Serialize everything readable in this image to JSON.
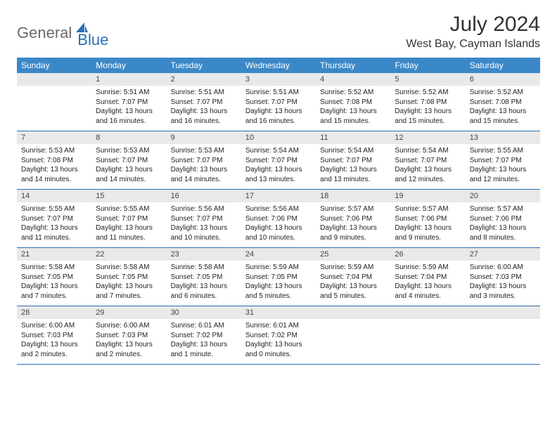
{
  "brand": {
    "part1": "General",
    "part2": "Blue"
  },
  "title": "July 2024",
  "location": "West Bay, Cayman Islands",
  "colors": {
    "header_bg": "#3b88c8",
    "header_text": "#ffffff",
    "border": "#2a6fb5",
    "daynum_bg": "#e9e9e9",
    "logo_gray": "#6b6b6b",
    "logo_blue": "#2a6fb5",
    "text": "#222222",
    "background": "#ffffff"
  },
  "dayNames": [
    "Sunday",
    "Monday",
    "Tuesday",
    "Wednesday",
    "Thursday",
    "Friday",
    "Saturday"
  ],
  "weeks": [
    [
      {
        "day": "",
        "sunrise": "",
        "sunset": "",
        "dl1": "",
        "dl2": ""
      },
      {
        "day": "1",
        "sunrise": "Sunrise: 5:51 AM",
        "sunset": "Sunset: 7:07 PM",
        "dl1": "Daylight: 13 hours",
        "dl2": "and 16 minutes."
      },
      {
        "day": "2",
        "sunrise": "Sunrise: 5:51 AM",
        "sunset": "Sunset: 7:07 PM",
        "dl1": "Daylight: 13 hours",
        "dl2": "and 16 minutes."
      },
      {
        "day": "3",
        "sunrise": "Sunrise: 5:51 AM",
        "sunset": "Sunset: 7:07 PM",
        "dl1": "Daylight: 13 hours",
        "dl2": "and 16 minutes."
      },
      {
        "day": "4",
        "sunrise": "Sunrise: 5:52 AM",
        "sunset": "Sunset: 7:08 PM",
        "dl1": "Daylight: 13 hours",
        "dl2": "and 15 minutes."
      },
      {
        "day": "5",
        "sunrise": "Sunrise: 5:52 AM",
        "sunset": "Sunset: 7:08 PM",
        "dl1": "Daylight: 13 hours",
        "dl2": "and 15 minutes."
      },
      {
        "day": "6",
        "sunrise": "Sunrise: 5:52 AM",
        "sunset": "Sunset: 7:08 PM",
        "dl1": "Daylight: 13 hours",
        "dl2": "and 15 minutes."
      }
    ],
    [
      {
        "day": "7",
        "sunrise": "Sunrise: 5:53 AM",
        "sunset": "Sunset: 7:08 PM",
        "dl1": "Daylight: 13 hours",
        "dl2": "and 14 minutes."
      },
      {
        "day": "8",
        "sunrise": "Sunrise: 5:53 AM",
        "sunset": "Sunset: 7:07 PM",
        "dl1": "Daylight: 13 hours",
        "dl2": "and 14 minutes."
      },
      {
        "day": "9",
        "sunrise": "Sunrise: 5:53 AM",
        "sunset": "Sunset: 7:07 PM",
        "dl1": "Daylight: 13 hours",
        "dl2": "and 14 minutes."
      },
      {
        "day": "10",
        "sunrise": "Sunrise: 5:54 AM",
        "sunset": "Sunset: 7:07 PM",
        "dl1": "Daylight: 13 hours",
        "dl2": "and 13 minutes."
      },
      {
        "day": "11",
        "sunrise": "Sunrise: 5:54 AM",
        "sunset": "Sunset: 7:07 PM",
        "dl1": "Daylight: 13 hours",
        "dl2": "and 13 minutes."
      },
      {
        "day": "12",
        "sunrise": "Sunrise: 5:54 AM",
        "sunset": "Sunset: 7:07 PM",
        "dl1": "Daylight: 13 hours",
        "dl2": "and 12 minutes."
      },
      {
        "day": "13",
        "sunrise": "Sunrise: 5:55 AM",
        "sunset": "Sunset: 7:07 PM",
        "dl1": "Daylight: 13 hours",
        "dl2": "and 12 minutes."
      }
    ],
    [
      {
        "day": "14",
        "sunrise": "Sunrise: 5:55 AM",
        "sunset": "Sunset: 7:07 PM",
        "dl1": "Daylight: 13 hours",
        "dl2": "and 11 minutes."
      },
      {
        "day": "15",
        "sunrise": "Sunrise: 5:55 AM",
        "sunset": "Sunset: 7:07 PM",
        "dl1": "Daylight: 13 hours",
        "dl2": "and 11 minutes."
      },
      {
        "day": "16",
        "sunrise": "Sunrise: 5:56 AM",
        "sunset": "Sunset: 7:07 PM",
        "dl1": "Daylight: 13 hours",
        "dl2": "and 10 minutes."
      },
      {
        "day": "17",
        "sunrise": "Sunrise: 5:56 AM",
        "sunset": "Sunset: 7:06 PM",
        "dl1": "Daylight: 13 hours",
        "dl2": "and 10 minutes."
      },
      {
        "day": "18",
        "sunrise": "Sunrise: 5:57 AM",
        "sunset": "Sunset: 7:06 PM",
        "dl1": "Daylight: 13 hours",
        "dl2": "and 9 minutes."
      },
      {
        "day": "19",
        "sunrise": "Sunrise: 5:57 AM",
        "sunset": "Sunset: 7:06 PM",
        "dl1": "Daylight: 13 hours",
        "dl2": "and 9 minutes."
      },
      {
        "day": "20",
        "sunrise": "Sunrise: 5:57 AM",
        "sunset": "Sunset: 7:06 PM",
        "dl1": "Daylight: 13 hours",
        "dl2": "and 8 minutes."
      }
    ],
    [
      {
        "day": "21",
        "sunrise": "Sunrise: 5:58 AM",
        "sunset": "Sunset: 7:05 PM",
        "dl1": "Daylight: 13 hours",
        "dl2": "and 7 minutes."
      },
      {
        "day": "22",
        "sunrise": "Sunrise: 5:58 AM",
        "sunset": "Sunset: 7:05 PM",
        "dl1": "Daylight: 13 hours",
        "dl2": "and 7 minutes."
      },
      {
        "day": "23",
        "sunrise": "Sunrise: 5:58 AM",
        "sunset": "Sunset: 7:05 PM",
        "dl1": "Daylight: 13 hours",
        "dl2": "and 6 minutes."
      },
      {
        "day": "24",
        "sunrise": "Sunrise: 5:59 AM",
        "sunset": "Sunset: 7:05 PM",
        "dl1": "Daylight: 13 hours",
        "dl2": "and 5 minutes."
      },
      {
        "day": "25",
        "sunrise": "Sunrise: 5:59 AM",
        "sunset": "Sunset: 7:04 PM",
        "dl1": "Daylight: 13 hours",
        "dl2": "and 5 minutes."
      },
      {
        "day": "26",
        "sunrise": "Sunrise: 5:59 AM",
        "sunset": "Sunset: 7:04 PM",
        "dl1": "Daylight: 13 hours",
        "dl2": "and 4 minutes."
      },
      {
        "day": "27",
        "sunrise": "Sunrise: 6:00 AM",
        "sunset": "Sunset: 7:03 PM",
        "dl1": "Daylight: 13 hours",
        "dl2": "and 3 minutes."
      }
    ],
    [
      {
        "day": "28",
        "sunrise": "Sunrise: 6:00 AM",
        "sunset": "Sunset: 7:03 PM",
        "dl1": "Daylight: 13 hours",
        "dl2": "and 2 minutes."
      },
      {
        "day": "29",
        "sunrise": "Sunrise: 6:00 AM",
        "sunset": "Sunset: 7:03 PM",
        "dl1": "Daylight: 13 hours",
        "dl2": "and 2 minutes."
      },
      {
        "day": "30",
        "sunrise": "Sunrise: 6:01 AM",
        "sunset": "Sunset: 7:02 PM",
        "dl1": "Daylight: 13 hours",
        "dl2": "and 1 minute."
      },
      {
        "day": "31",
        "sunrise": "Sunrise: 6:01 AM",
        "sunset": "Sunset: 7:02 PM",
        "dl1": "Daylight: 13 hours",
        "dl2": "and 0 minutes."
      },
      {
        "day": "",
        "sunrise": "",
        "sunset": "",
        "dl1": "",
        "dl2": ""
      },
      {
        "day": "",
        "sunrise": "",
        "sunset": "",
        "dl1": "",
        "dl2": ""
      },
      {
        "day": "",
        "sunrise": "",
        "sunset": "",
        "dl1": "",
        "dl2": ""
      }
    ]
  ]
}
